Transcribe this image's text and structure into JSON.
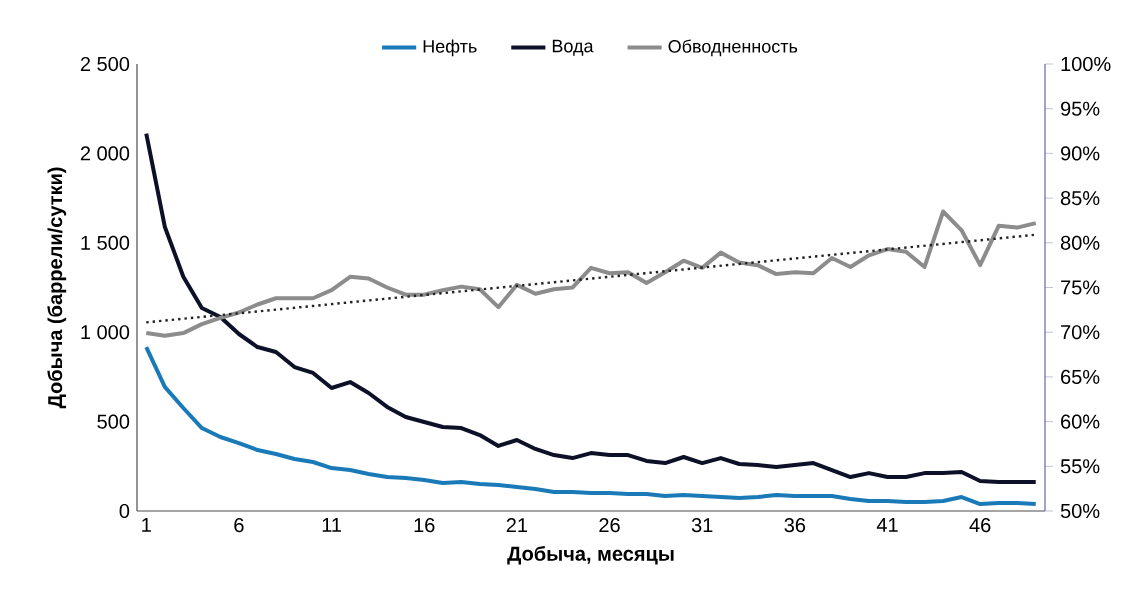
{
  "chart_data": {
    "type": "line",
    "xlabel": "Добыча, месяцы",
    "ylabel": "Добыча (баррели/сутки)",
    "legend": "top",
    "marker": "none",
    "x": [
      1,
      2,
      3,
      4,
      5,
      6,
      7,
      8,
      9,
      10,
      11,
      12,
      13,
      14,
      15,
      16,
      17,
      18,
      19,
      20,
      21,
      22,
      23,
      24,
      25,
      26,
      27,
      28,
      29,
      30,
      31,
      32,
      33,
      34,
      35,
      36,
      37,
      38,
      39,
      40,
      41,
      42,
      43,
      44,
      45,
      46,
      47,
      48,
      49
    ],
    "xlim": [
      0.5,
      49.5
    ],
    "xticks": [
      1,
      6,
      11,
      16,
      21,
      26,
      31,
      36,
      41,
      46
    ],
    "ylim": [
      0,
      2500
    ],
    "yticks": [
      0,
      500,
      {
        "value": 1000,
        "label": "1 000"
      },
      {
        "value": 1500,
        "label": "1 500"
      },
      {
        "value": 2000,
        "label": "2 000"
      },
      {
        "value": 2500,
        "label": "2 500"
      }
    ],
    "y2lim": [
      50,
      100
    ],
    "y2ticks": [
      {
        "value": 50,
        "label": "50%"
      },
      {
        "value": 55,
        "label": "55%"
      },
      {
        "value": 60,
        "label": "60%"
      },
      {
        "value": 65,
        "label": "65%"
      },
      {
        "value": 70,
        "label": "70%"
      },
      {
        "value": 75,
        "label": "75%"
      },
      {
        "value": 80,
        "label": "80%"
      },
      {
        "value": 85,
        "label": "85%"
      },
      {
        "value": 90,
        "label": "90%"
      },
      {
        "value": 95,
        "label": "95%"
      },
      {
        "value": 100,
        "label": "100%"
      }
    ],
    "series": [
      {
        "name": "Нефть",
        "color": "#1a7ab8",
        "values": [
          917,
          694,
          576,
          464,
          414,
          380,
          341,
          319,
          291,
          274,
          240,
          229,
          207,
          190,
          185,
          173,
          157,
          162,
          151,
          145,
          134,
          123,
          106,
          106,
          101,
          101,
          95,
          95,
          84,
          89,
          84,
          78,
          73,
          78,
          89,
          84,
          84,
          84,
          67,
          56,
          56,
          50,
          50,
          56,
          78,
          39,
          45,
          45,
          39
        ]
      },
      {
        "name": "Вода",
        "color": "#0d1128",
        "values": [
          2110,
          1590,
          1310,
          1135,
          1085,
          990,
          917,
          889,
          805,
          772,
          688,
          721,
          660,
          582,
          526,
          498,
          470,
          464,
          425,
          364,
          397,
          347,
          313,
          296,
          324,
          313,
          313,
          280,
          268,
          302,
          268,
          296,
          263,
          257,
          246,
          257,
          268,
          229,
          190,
          212,
          190,
          190,
          212,
          212,
          218,
          168,
          162,
          162,
          162
        ]
      },
      {
        "name": "Обводненность",
        "color": "#8c8c8c",
        "axis": "y2",
        "values": [
          69.9,
          69.6,
          69.9,
          70.9,
          71.6,
          72.2,
          73.1,
          73.8,
          73.8,
          73.8,
          74.7,
          76.2,
          76.0,
          75.0,
          74.2,
          74.2,
          74.7,
          75.1,
          74.8,
          72.8,
          75.3,
          74.3,
          74.8,
          75.0,
          77.2,
          76.6,
          76.7,
          75.5,
          76.7,
          78.0,
          77.2,
          78.9,
          77.8,
          77.5,
          76.5,
          76.7,
          76.6,
          78.3,
          77.3,
          78.6,
          79.3,
          79.0,
          77.3,
          83.5,
          81.4,
          77.5,
          81.9,
          81.7,
          82.2
        ]
      },
      {
        "type": "line",
        "color": "#222222",
        "axis": "y2",
        "line_style": "dotted",
        "x": [
          1,
          49
        ],
        "values": [
          71.1,
          80.9
        ]
      }
    ]
  }
}
